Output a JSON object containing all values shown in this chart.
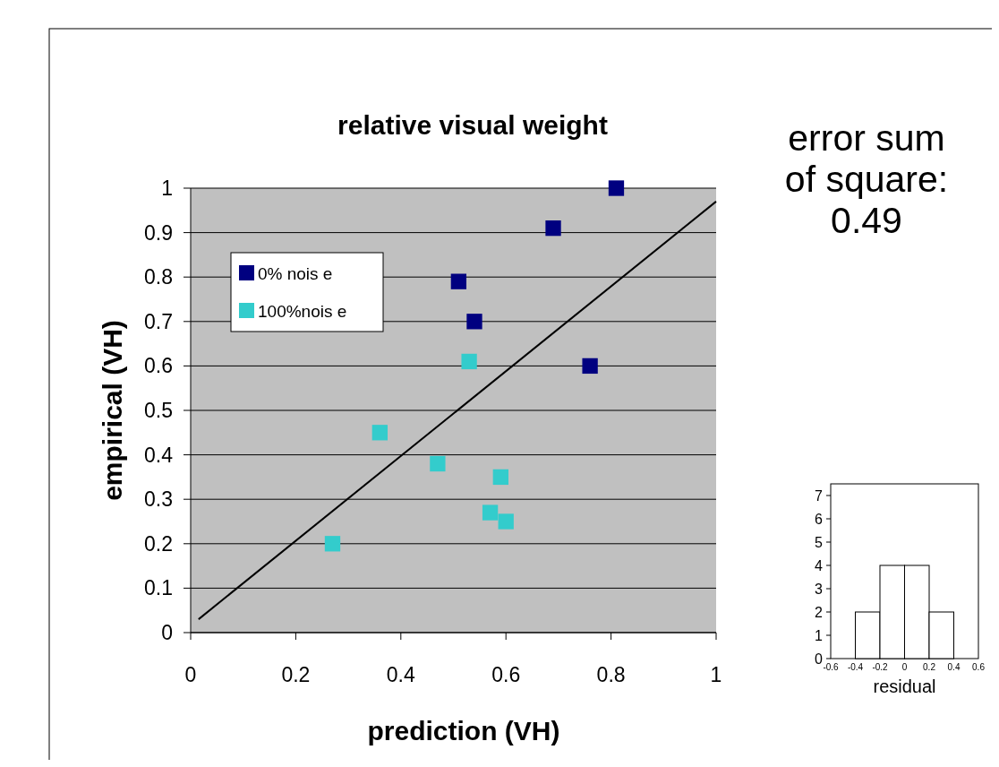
{
  "chart_data": [
    {
      "type": "scatter",
      "title": "relative visual weight",
      "xlabel": "prediction (VH)",
      "ylabel": "empirical (VH)",
      "annotations": [
        "error sum of square: 0.49"
      ],
      "xlim": [
        0,
        1
      ],
      "xticks": [
        0,
        0.2,
        0.4,
        0.6,
        0.8,
        1
      ],
      "ylim": [
        0,
        1
      ],
      "yticks": [
        0,
        0.1,
        0.2,
        0.3,
        0.4,
        0.5,
        0.6,
        0.7,
        0.8,
        0.9,
        1
      ],
      "grid": "y",
      "legend": "top left",
      "series": [
        {
          "name": "0% nois e",
          "marker": "square",
          "color": "#000080",
          "x": [
            0.81,
            0.69,
            0.51,
            0.54,
            0.76
          ],
          "values": [
            1.0,
            0.91,
            0.79,
            0.7,
            0.6
          ]
        },
        {
          "name": "100%nois e",
          "marker": "square",
          "color": "#33cccc",
          "x": [
            0.53,
            0.36,
            0.47,
            0.59,
            0.57,
            0.6,
            0.27
          ],
          "values": [
            0.61,
            0.45,
            0.38,
            0.35,
            0.27,
            0.25,
            0.2
          ]
        },
        {
          "type": "line",
          "marker": "none",
          "color": "#000000",
          "x": [
            0.015,
            1
          ],
          "values": [
            0.03,
            0.97
          ]
        }
      ]
    },
    {
      "type": "histogram",
      "xlabel": "residual",
      "bins": [
        -0.4,
        -0.2,
        0,
        0.2,
        0.4
      ],
      "values": [
        2,
        4,
        4,
        2
      ],
      "xlim": [
        -0.6,
        0.6
      ],
      "xticks": [
        -0.6,
        -0.4,
        -0.2,
        0,
        0.2,
        0.4,
        0.6
      ],
      "ylim": [
        0,
        7.5
      ],
      "yticks": [
        0,
        1,
        2,
        3,
        4,
        5,
        6,
        7
      ]
    }
  ]
}
